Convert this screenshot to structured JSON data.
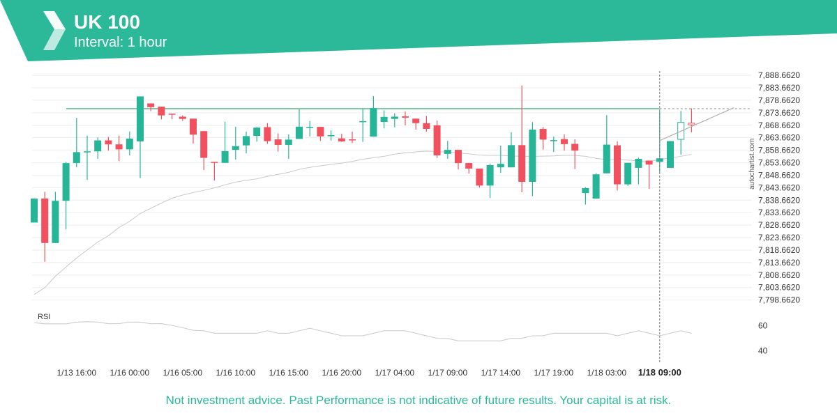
{
  "header": {
    "title": "UK 100",
    "subtitle": "Interval: 1 hour",
    "logo_icon": "autochartist-logo-icon"
  },
  "colors": {
    "brand": "#2bb99a",
    "bullish": "#26b596",
    "bearish": "#f1515e",
    "resistance": "#7fc9a5",
    "moving_average": "#c8c8c8",
    "grid": "#eeeeee",
    "text": "#333333"
  },
  "watermark": "autochartist.com",
  "disclaimer": "Not investment advice. Past Performance is not indicative of future results. Your capital is at risk.",
  "chart_data": {
    "type": "candlestick",
    "price_ticks": [
      "7,888.6620",
      "7,883.6620",
      "7,878.6620",
      "7,873.6620",
      "7,868.6620",
      "7,863.6620",
      "7,858.6620",
      "7,853.6620",
      "7,848.6620",
      "7,843.6620",
      "7,838.6620",
      "7,833.6620",
      "7,828.6620",
      "7,823.6620",
      "7,818.6620",
      "7,813.6620",
      "7,808.6620",
      "7,803.6620",
      "7,798.6620"
    ],
    "ylim": [
      7795.5,
      7889.8
    ],
    "x_labels": [
      "1/13 16:00",
      "1/16 00:00",
      "1/16 05:00",
      "1/16 10:00",
      "1/16 15:00",
      "1/16 20:00",
      "1/17 04:00",
      "1/17 09:00",
      "1/17 14:00",
      "1/17 19:00",
      "1/18 03:00",
      "1/18 09:00"
    ],
    "x_label_index": [
      4,
      9,
      14,
      19,
      24,
      29,
      34,
      39,
      44,
      49,
      54,
      59
    ],
    "highlight_label": "1/18 09:00",
    "highlight_index": 59,
    "resistance_level": 7875.3,
    "candles": [
      [
        7829.7,
        7839.3,
        7829.7,
        7839.3
      ],
      [
        7839.3,
        7842.0,
        7814.0,
        7821.5
      ],
      [
        7821.5,
        7842.0,
        7821.5,
        7838.4
      ],
      [
        7838.4,
        7854.0,
        7827.0,
        7853.5
      ],
      [
        7853.5,
        7871.6,
        7851.8,
        7857.9
      ],
      [
        7857.9,
        7864.5,
        7846.8,
        7858.2
      ],
      [
        7858.2,
        7863.8,
        7855.2,
        7862.6
      ],
      [
        7862.6,
        7864.0,
        7858.5,
        7861.0
      ],
      [
        7861.0,
        7864.5,
        7854.3,
        7859.0
      ],
      [
        7859.0,
        7866.2,
        7856.6,
        7863.3
      ],
      [
        7862.2,
        7880.2,
        7847.5,
        7880.2
      ],
      [
        7877.4,
        7877.4,
        7874.3,
        7875.9
      ],
      [
        7876.1,
        7876.1,
        7871.0,
        7872.6
      ],
      [
        7873.3,
        7873.3,
        7871.1,
        7873.0
      ],
      [
        7872.1,
        7872.6,
        7870.4,
        7871.2
      ],
      [
        7871.3,
        7871.3,
        7861.3,
        7864.9
      ],
      [
        7866.3,
        7866.3,
        7850.7,
        7855.6
      ],
      [
        7854.0,
        7854.0,
        7846.5,
        7853.6
      ],
      [
        7853.6,
        7870.1,
        7853.6,
        7858.3
      ],
      [
        7858.8,
        7868.1,
        7854.9,
        7860.3
      ],
      [
        7860.6,
        7866.1,
        7857.4,
        7864.3
      ],
      [
        7864.4,
        7868.0,
        7862.1,
        7867.7
      ],
      [
        7867.9,
        7869.5,
        7861.2,
        7862.3
      ],
      [
        7863.0,
        7865.4,
        7858.1,
        7860.8
      ],
      [
        7860.8,
        7865.0,
        7855.2,
        7862.9
      ],
      [
        7863.2,
        7875.1,
        7863.2,
        7868.1
      ],
      [
        7867.9,
        7870.4,
        7864.2,
        7867.9
      ],
      [
        7868.0,
        7868.0,
        7862.4,
        7864.2
      ],
      [
        7864.7,
        7866.6,
        7862.5,
        7864.7
      ],
      [
        7863.4,
        7865.3,
        7862.0,
        7862.2
      ],
      [
        7863.0,
        7866.1,
        7861.5,
        7862.6
      ],
      [
        7870.0,
        7875.4,
        7862.0,
        7870.3
      ],
      [
        7864.1,
        7880.3,
        7864.1,
        7875.5
      ],
      [
        7870.0,
        7874.6,
        7867.4,
        7872.0
      ],
      [
        7871.2,
        7873.4,
        7867.8,
        7872.1
      ],
      [
        7872.2,
        7874.2,
        7868.6,
        7871.7
      ],
      [
        7871.3,
        7871.3,
        7866.9,
        7869.5
      ],
      [
        7869.5,
        7872.4,
        7866.1,
        7867.2
      ],
      [
        7868.6,
        7870.5,
        7855.6,
        7856.6
      ],
      [
        7857.2,
        7862.4,
        7855.2,
        7858.8
      ],
      [
        7858.8,
        7858.8,
        7851.0,
        7853.5
      ],
      [
        7853.5,
        7853.6,
        7849.3,
        7851.3
      ],
      [
        7851.3,
        7851.3,
        7843.7,
        7844.5
      ],
      [
        7844.5,
        7853.3,
        7839.5,
        7852.7
      ],
      [
        7851.8,
        7860.5,
        7849.6,
        7853.2
      ],
      [
        7851.8,
        7865.8,
        7851.8,
        7860.7
      ],
      [
        7860.7,
        7884.6,
        7841.8,
        7846.0
      ],
      [
        7846.0,
        7869.9,
        7840.3,
        7866.9
      ],
      [
        7867.2,
        7867.9,
        7858.9,
        7862.9
      ],
      [
        7862.6,
        7864.1,
        7858.0,
        7862.7
      ],
      [
        7863.1,
        7865.0,
        7858.5,
        7861.1
      ],
      [
        7861.2,
        7863.0,
        7851.1,
        7858.5
      ],
      [
        7841.5,
        7843.8,
        7836.9,
        7843.5
      ],
      [
        7839.3,
        7849.4,
        7839.3,
        7849.0
      ],
      [
        7849.4,
        7872.7,
        7849.4,
        7860.9
      ],
      [
        7860.6,
        7862.3,
        7842.5,
        7845.0
      ],
      [
        7845.0,
        7853.6,
        7844.4,
        7853.6
      ],
      [
        7851.6,
        7855.7,
        7845.0,
        7855.2
      ],
      [
        7854.5,
        7854.5,
        7843.2,
        7852.9
      ],
      [
        7854.0,
        7874.4,
        7849.8,
        7855.4
      ],
      [
        7851.6,
        7862.3,
        7851.6,
        7862.3
      ],
      [
        7863.0,
        7874.4,
        7856.9,
        7869.8
      ],
      [
        7869.5,
        7875.4,
        7865.8,
        7868.8
      ]
    ],
    "moving_average": {
      "name": "",
      "values": [
        7800.9,
        7803.6,
        7808.2,
        7811.9,
        7815.5,
        7818.7,
        7821.9,
        7824.4,
        7827.7,
        7830.2,
        7833.3,
        7835.4,
        7837.5,
        7839.4,
        7840.7,
        7841.7,
        7842.6,
        7843.6,
        7844.8,
        7845.9,
        7846.6,
        7847.2,
        7848.2,
        7849.0,
        7849.8,
        7851.0,
        7851.8,
        7852.4,
        7853.0,
        7853.5,
        7854.2,
        7855.0,
        7855.7,
        7856.2,
        7857.1,
        7857.6,
        7858.0,
        7858.3,
        7858.1,
        7857.9,
        7857.6,
        7857.2,
        7856.7,
        7856.6,
        7856.6,
        7856.4,
        7856.2,
        7856.2,
        7856.3,
        7856.4,
        7856.6,
        7856.6,
        7856.2,
        7855.4,
        7854.9,
        7854.8,
        7854.7,
        7854.4,
        7854.2,
        7854.9,
        7855.6,
        7856.2,
        7857.0
      ]
    },
    "trendline": {
      "from": [
        59,
        7862.5
      ],
      "to": [
        66,
        7875.7
      ]
    },
    "rsi": {
      "label": "RSI",
      "ticks": [
        "60",
        "40"
      ],
      "tick_values": [
        60,
        40
      ],
      "ylim": [
        32,
        72
      ],
      "values": [
        62.5,
        61.5,
        61.5,
        61.5,
        62.9,
        63.2,
        63.0,
        61.6,
        61.7,
        62.9,
        62.9,
        61.6,
        61.7,
        60.3,
        58.5,
        56.4,
        56.0,
        54.0,
        54.0,
        54.0,
        54.0,
        54.0,
        56.0,
        54.0,
        54.0,
        56.0,
        58.0,
        56.0,
        54.0,
        52.0,
        52.0,
        52.0,
        54.0,
        56.0,
        56.0,
        56.0,
        54.0,
        52.0,
        50.0,
        49.9,
        48.0,
        48.0,
        48.0,
        48.0,
        48.0,
        50.0,
        50.0,
        52.0,
        52.0,
        54.0,
        54.0,
        54.0,
        54.0,
        54.0,
        54.0,
        52.0,
        54.0,
        56.0,
        54.0,
        52.0,
        54.0,
        56.0,
        54.0
      ]
    }
  }
}
